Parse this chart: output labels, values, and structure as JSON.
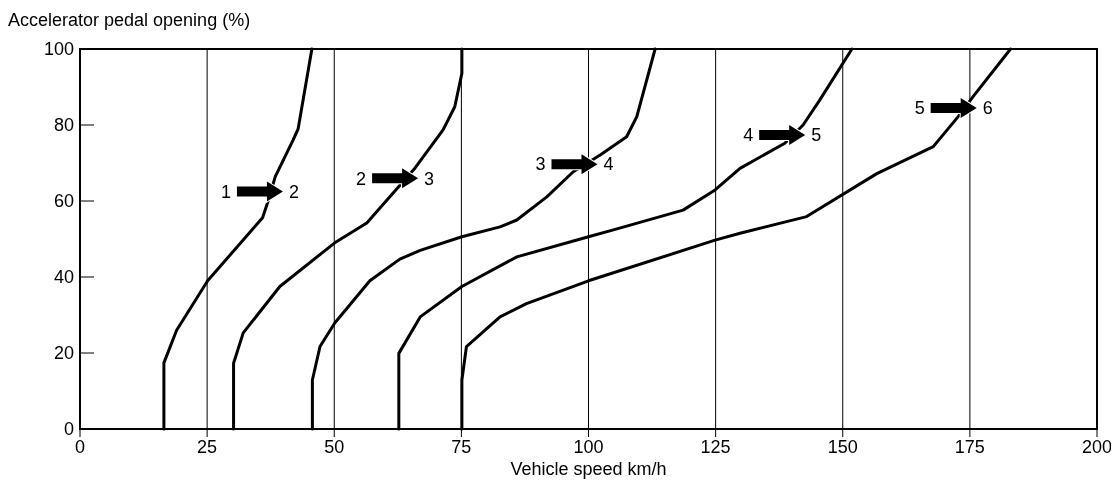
{
  "chart_data": {
    "type": "line",
    "xlabel": "Vehicle speed km/h",
    "ylabel": "Accelerator pedal opening (%)",
    "xlim": [
      0,
      200
    ],
    "ylim": [
      0,
      100
    ],
    "xticks": [
      0,
      25,
      50,
      75,
      100,
      125,
      150,
      175,
      200
    ],
    "yticks": [
      0,
      20,
      40,
      60,
      80,
      100
    ],
    "grid": "x",
    "marker": "none",
    "line_style": "solid",
    "series": [
      {
        "color": "#000000",
        "x": [
          16.5,
          16.5,
          19,
          25.1,
          35.9,
          37,
          38.4,
          41.9,
          42.9,
          45.6
        ],
        "values": [
          0,
          17.4,
          26,
          39,
          55.6,
          60,
          66.4,
          76,
          79,
          100
        ]
      },
      {
        "color": "#000000",
        "x": [
          30.2,
          30.2,
          32.1,
          39.3,
          50.1,
          56.4,
          65.9,
          71.4,
          73.7,
          75.1,
          75.1
        ],
        "values": [
          0,
          17.3,
          25.3,
          37.5,
          49,
          54.2,
          68.7,
          78.7,
          84.8,
          93.6,
          100
        ]
      },
      {
        "color": "#000000",
        "x": [
          45.7,
          45.7,
          47.2,
          50.1,
          57,
          62.9,
          66.9,
          75.1,
          82.6,
          85.9,
          91.8,
          97,
          102.3,
          107.5,
          109.5,
          113.1
        ],
        "values": [
          0,
          12.9,
          21.7,
          27.9,
          39,
          44.7,
          47,
          50.6,
          53.2,
          55,
          61.1,
          67.7,
          72.1,
          76.9,
          82.2,
          100
        ]
      },
      {
        "color": "#000000",
        "x": [
          62.7,
          62.7,
          66.9,
          75.1,
          85.9,
          100,
          104.9,
          118.6,
          124.9,
          129.8,
          138.6,
          142.2,
          145.5,
          151.8
        ],
        "values": [
          0,
          19.9,
          29.5,
          37.5,
          45.3,
          50.6,
          52.4,
          57.6,
          62.9,
          68.6,
          75.2,
          80,
          86.6,
          100
        ]
      },
      {
        "color": "#000000",
        "x": [
          75.1,
          75.1,
          76,
          82.6,
          87.8,
          100,
          124.9,
          129.8,
          142.9,
          156.7,
          167.8,
          172.7,
          175.7,
          183
        ],
        "values": [
          0,
          12.9,
          21.7,
          29.5,
          33,
          39,
          49.7,
          51.5,
          55.9,
          67.2,
          74.3,
          82.2,
          87.6,
          100
        ]
      }
    ],
    "annotations": [
      "1",
      "2",
      "2",
      "3",
      "3",
      "4",
      "4",
      "5",
      "5",
      "6"
    ]
  }
}
